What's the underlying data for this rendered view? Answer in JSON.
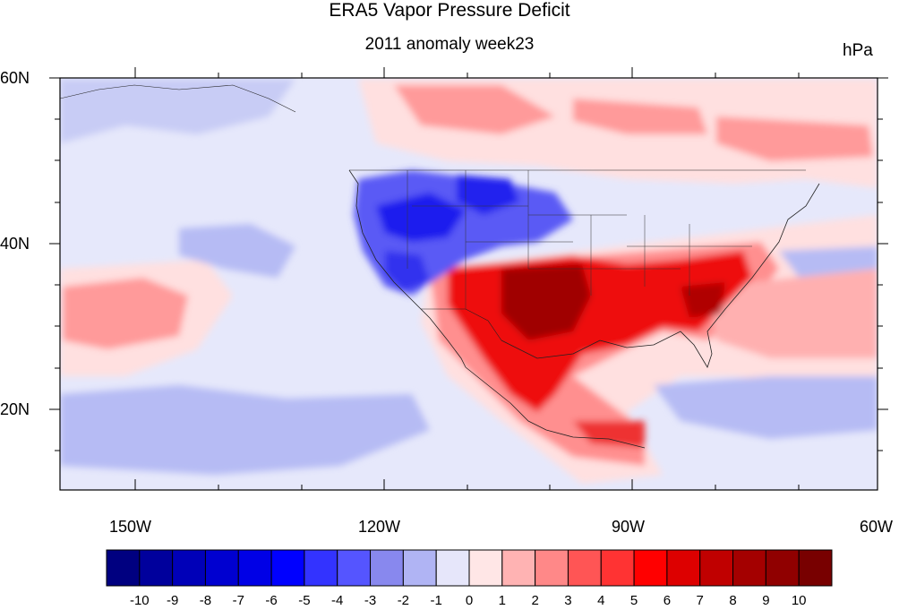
{
  "title": "ERA5 Vapor Pressure Deficit",
  "subtitle": "2011 anomaly week23",
  "units": "hPa",
  "map": {
    "lon_labels": [
      "150W",
      "120W",
      "90W",
      "60W"
    ],
    "lat_labels": [
      "60N",
      "40N",
      "20N"
    ],
    "colors": {
      "ocean_background": "#e6e8fb",
      "strong_positive": "#cc0000",
      "strong_negative": "#3333ee"
    }
  },
  "colorbar": {
    "labels": [
      "-10",
      "-9",
      "-8",
      "-7",
      "-6",
      "-5",
      "-4",
      "-3",
      "-2",
      "-1",
      "0",
      "1",
      "2",
      "3",
      "4",
      "5",
      "6",
      "7",
      "8",
      "9",
      "10"
    ],
    "colors": [
      "#000080",
      "#00009c",
      "#0000b8",
      "#0000d0",
      "#0000e6",
      "#0000ff",
      "#3333ff",
      "#5555ff",
      "#8888ee",
      "#b0b4f4",
      "#e6e6fa",
      "#ffe6e6",
      "#ffb3b3",
      "#ff8888",
      "#ff5555",
      "#ff3333",
      "#ff0000",
      "#dd0000",
      "#c00000",
      "#a40000",
      "#900000",
      "#780000"
    ]
  }
}
